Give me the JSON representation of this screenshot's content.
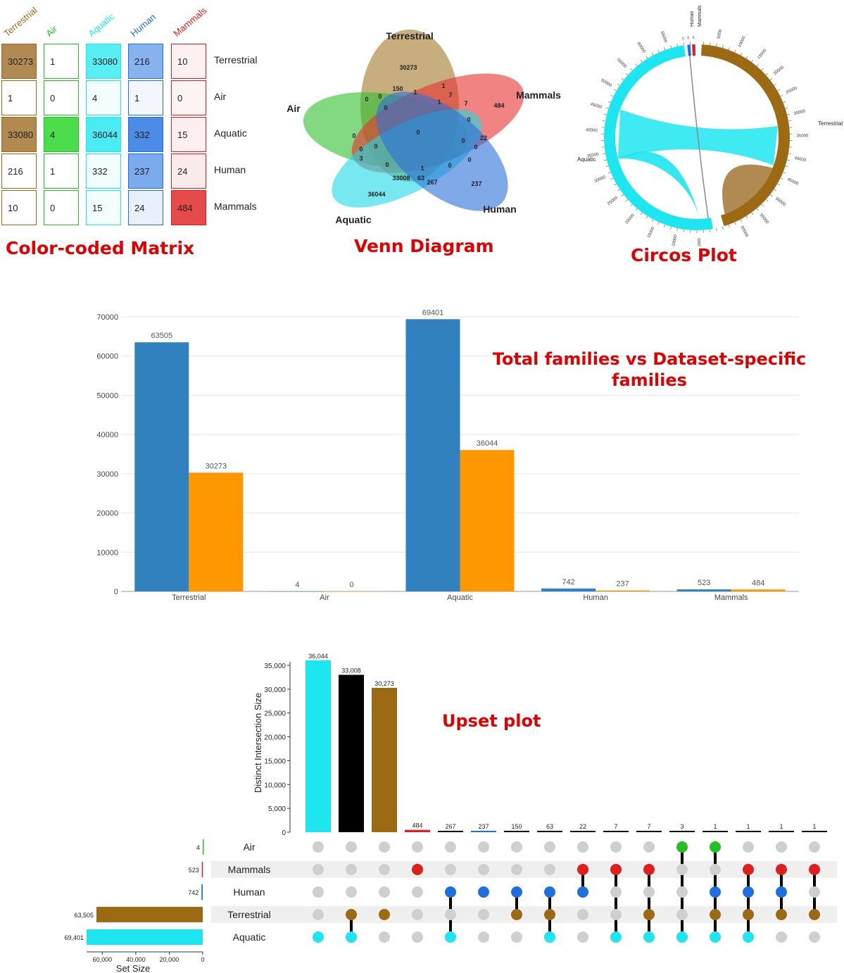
{
  "titles": {
    "matrix": "Color-coded Matrix",
    "venn": "Venn Diagram",
    "circos": "Circos Plot",
    "bar": "Total families vs Dataset-specific families",
    "upset": "Upset plot"
  },
  "colors": {
    "Terrestrial": "#9b6a12",
    "Air": "#22c022",
    "Aquatic": "#1ee6f0",
    "Human": "#1f6fe0",
    "Mammals": "#e01e1e",
    "bar_total": "#3281bf",
    "bar_specific": "#ff9800"
  },
  "matrix": {
    "columns": [
      "Terrestrial",
      "Air",
      "Aquatic",
      "Human",
      "Mammals"
    ],
    "rows": [
      "Terrestrial",
      "Air",
      "Aquatic",
      "Human",
      "Mammals"
    ],
    "values": [
      [
        30273,
        1,
        33080,
        216,
        10
      ],
      [
        1,
        0,
        4,
        1,
        0
      ],
      [
        33080,
        4,
        36044,
        332,
        15
      ],
      [
        216,
        1,
        332,
        237,
        24
      ],
      [
        10,
        0,
        15,
        24,
        484
      ]
    ]
  },
  "venn": {
    "sets": [
      "Terrestrial",
      "Air",
      "Mammals",
      "Aquatic",
      "Human"
    ],
    "region_values": [
      "30273",
      "150",
      "0",
      "1",
      "1",
      "7",
      "1",
      "484",
      "0",
      "0",
      "0",
      "7",
      "0",
      "0",
      "0",
      "22",
      "0",
      "0",
      "0",
      "3",
      "0",
      "1",
      "0",
      "0",
      "33008",
      "63",
      "267",
      "237",
      "36044"
    ]
  },
  "circos": {
    "segments": [
      "Terrestrial",
      "Air",
      "Aquatic",
      "Human",
      "Mammals"
    ],
    "tick_labels_terrestrial": [
      "5000",
      "10000",
      "15000",
      "20000",
      "25000",
      "30000",
      "35000",
      "40000",
      "45000",
      "50000",
      "55000",
      "60000"
    ],
    "tick_labels_aquatic": [
      "5000",
      "10000",
      "15000",
      "20000",
      "25000",
      "30000",
      "35000",
      "40000",
      "45000",
      "50000",
      "55000",
      "60000",
      "65000"
    ],
    "small_ticks": [
      "0",
      "0",
      "0"
    ]
  },
  "chart_data": [
    {
      "type": "bar",
      "title": "Total families vs Dataset-specific families",
      "categories": [
        "Terrestrial",
        "Air",
        "Aquatic",
        "Human",
        "Mammals"
      ],
      "series": [
        {
          "values": [
            63505,
            4,
            69401,
            742,
            523
          ]
        },
        {
          "values": [
            30273,
            0,
            36044,
            237,
            484
          ]
        }
      ],
      "ylim": [
        0,
        70000
      ],
      "yticks": [
        "0",
        "10000",
        "20000",
        "30000",
        "40000",
        "50000",
        "60000",
        "70000"
      ],
      "grid": true
    },
    {
      "type": "bar",
      "title": "Upset plot",
      "ylabel": "Distinct Intersection Size",
      "xlabel": "Set Size",
      "sets": [
        "Air",
        "Mammals",
        "Human",
        "Terrestrial",
        "Aquatic"
      ],
      "set_sizes": [
        4,
        523,
        742,
        63505,
        69401
      ],
      "set_size_labels": [
        "4",
        "523",
        "742",
        "63,505",
        "69,401"
      ],
      "set_size_ticks": [
        "60,000",
        "40,000",
        "20,000",
        "0"
      ],
      "yticks": [
        "0",
        "5,000",
        "10,000",
        "15,000",
        "20,000",
        "25,000",
        "30,000",
        "35,000"
      ],
      "ylim": [
        0,
        36044
      ],
      "intersections": [
        {
          "value": 36044,
          "label": "36,044",
          "sets": [
            "Aquatic"
          ]
        },
        {
          "value": 33008,
          "label": "33,008",
          "sets": [
            "Terrestrial",
            "Aquatic"
          ]
        },
        {
          "value": 30273,
          "label": "30,273",
          "sets": [
            "Terrestrial"
          ]
        },
        {
          "value": 484,
          "label": "484",
          "sets": [
            "Mammals"
          ]
        },
        {
          "value": 267,
          "label": "267",
          "sets": [
            "Human",
            "Aquatic"
          ]
        },
        {
          "value": 237,
          "label": "237",
          "sets": [
            "Human"
          ]
        },
        {
          "value": 150,
          "label": "150",
          "sets": [
            "Human",
            "Terrestrial"
          ]
        },
        {
          "value": 63,
          "label": "63",
          "sets": [
            "Human",
            "Terrestrial",
            "Aquatic"
          ]
        },
        {
          "value": 22,
          "label": "22",
          "sets": [
            "Mammals",
            "Human"
          ]
        },
        {
          "value": 7,
          "label": "7",
          "sets": [
            "Mammals",
            "Aquatic"
          ]
        },
        {
          "value": 7,
          "label": "7",
          "sets": [
            "Mammals",
            "Terrestrial",
            "Aquatic"
          ]
        },
        {
          "value": 3,
          "label": "3",
          "sets": [
            "Air",
            "Aquatic"
          ]
        },
        {
          "value": 1,
          "label": "1",
          "sets": [
            "Air",
            "Human",
            "Terrestrial",
            "Aquatic"
          ]
        },
        {
          "value": 1,
          "label": "1",
          "sets": [
            "Mammals",
            "Human",
            "Terrestrial",
            "Aquatic"
          ]
        },
        {
          "value": 1,
          "label": "1",
          "sets": [
            "Mammals",
            "Human",
            "Terrestrial"
          ]
        },
        {
          "value": 1,
          "label": "1",
          "sets": [
            "Mammals",
            "Terrestrial"
          ]
        }
      ]
    }
  ]
}
